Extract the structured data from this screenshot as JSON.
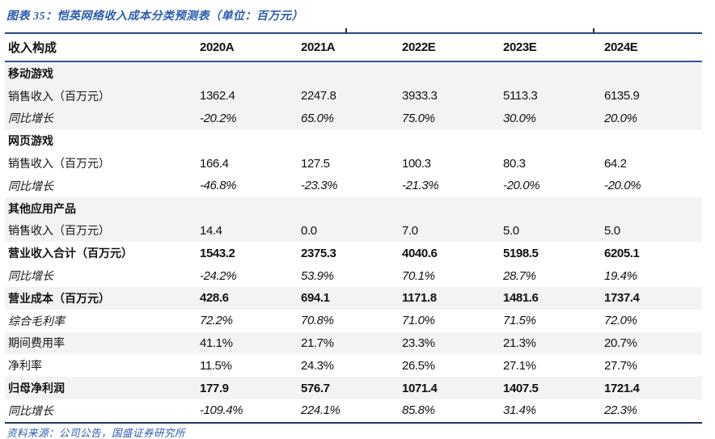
{
  "colors": {
    "accent_blue": "#2b5cac",
    "top_border_blue": "#24477e",
    "header_underline_blue": "#2f5597",
    "bottom_border_navy": "#1f3864",
    "stripe_gray": "#f3f3f3",
    "text": "#1a1a1a"
  },
  "chart_data": {
    "type": "table",
    "title": "图表 35：恺英网络收入成本分类预测表（单位：百万元）",
    "source": "资料来源：公司公告，国盛证券研究所",
    "columns": [
      "收入构成",
      "2020A",
      "2021A",
      "2022E",
      "2023E",
      "2024E"
    ],
    "rows": [
      {
        "label": "移动游戏",
        "values": [
          "",
          "",
          "",
          "",
          ""
        ],
        "style": "section",
        "shade": "gray"
      },
      {
        "label": "销售收入（百万元）",
        "values": [
          "1362.4",
          "2247.8",
          "3933.3",
          "5113.3",
          "6135.9"
        ],
        "style": "data",
        "shade": "gray"
      },
      {
        "label": "同比增长",
        "values": [
          "-20.2%",
          "65.0%",
          "75.0%",
          "30.0%",
          "20.0%"
        ],
        "style": "growth",
        "shade": "gray"
      },
      {
        "label": "网页游戏",
        "values": [
          "",
          "",
          "",
          "",
          ""
        ],
        "style": "section",
        "shade": "white"
      },
      {
        "label": "销售收入（百万元）",
        "values": [
          "166.4",
          "127.5",
          "100.3",
          "80.3",
          "64.2"
        ],
        "style": "data",
        "shade": "white"
      },
      {
        "label": "同比增长",
        "values": [
          "-46.8%",
          "-23.3%",
          "-21.3%",
          "-20.0%",
          "-20.0%"
        ],
        "style": "growth",
        "shade": "white"
      },
      {
        "label": "其他应用产品",
        "values": [
          "",
          "",
          "",
          "",
          ""
        ],
        "style": "section",
        "shade": "gray"
      },
      {
        "label": "销售收入（百万元）",
        "values": [
          "14.4",
          "0.0",
          "7.0",
          "5.0",
          "5.0"
        ],
        "style": "data",
        "shade": "gray"
      },
      {
        "label": "营业收入合计（百万元）",
        "values": [
          "1543.2",
          "2375.3",
          "4040.6",
          "5198.5",
          "6205.1"
        ],
        "style": "total",
        "shade": "white"
      },
      {
        "label": "同比增长",
        "values": [
          "-24.2%",
          "53.9%",
          "70.1%",
          "28.7%",
          "19.4%"
        ],
        "style": "growth",
        "shade": "white"
      },
      {
        "label": "营业成本（百万元）",
        "values": [
          "428.6",
          "694.1",
          "1171.8",
          "1481.6",
          "1737.4"
        ],
        "style": "total",
        "shade": "gray"
      },
      {
        "label": "综合毛利率",
        "values": [
          "72.2%",
          "70.8%",
          "71.0%",
          "71.5%",
          "72.0%"
        ],
        "style": "growth",
        "shade": "white"
      },
      {
        "label": "期间费用率",
        "values": [
          "41.1%",
          "21.7%",
          "23.3%",
          "21.3%",
          "20.7%"
        ],
        "style": "data",
        "shade": "gray"
      },
      {
        "label": "净利率",
        "values": [
          "11.5%",
          "24.3%",
          "26.5%",
          "27.1%",
          "27.7%"
        ],
        "style": "data",
        "shade": "white"
      },
      {
        "label": "归母净利润",
        "values": [
          "177.9",
          "576.7",
          "1071.4",
          "1407.5",
          "1721.4"
        ],
        "style": "total",
        "shade": "gray"
      },
      {
        "label": "同比增长",
        "values": [
          "-109.4%",
          "224.1%",
          "85.8%",
          "31.4%",
          "22.3%"
        ],
        "style": "growth",
        "shade": "white"
      }
    ]
  }
}
